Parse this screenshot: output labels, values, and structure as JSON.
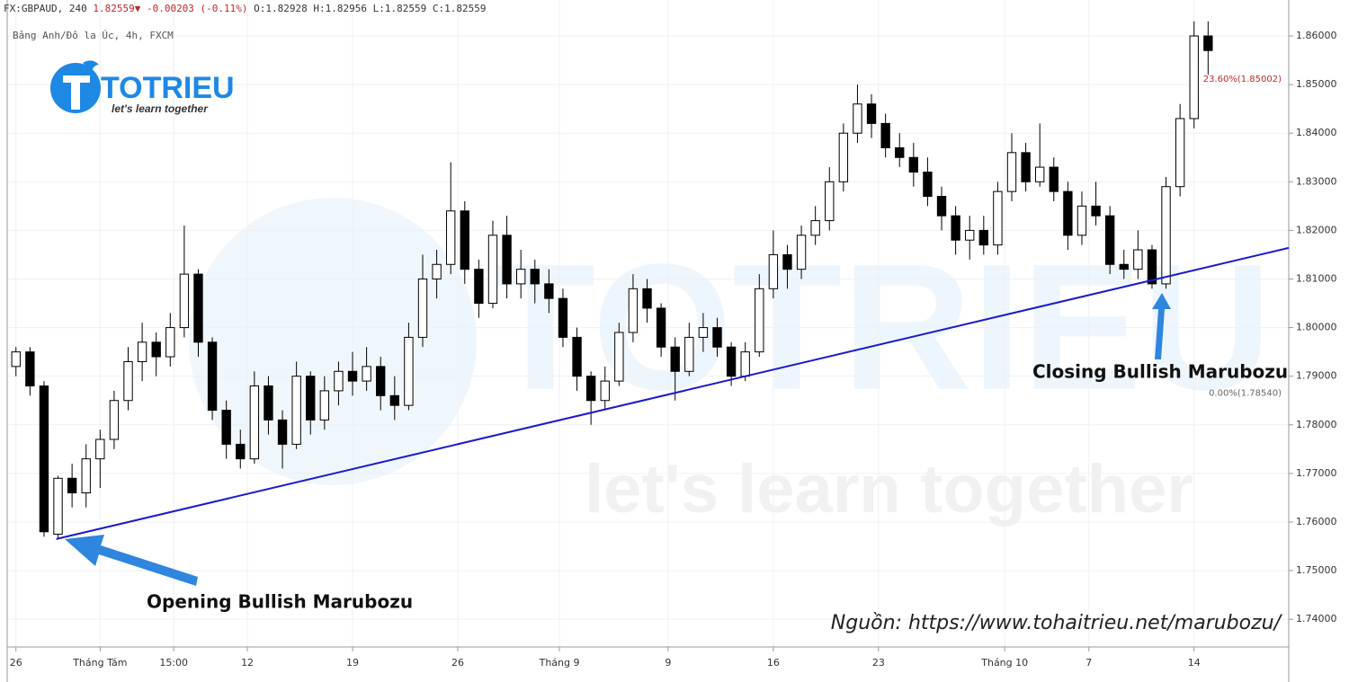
{
  "chart_data": {
    "type": "candlestick",
    "header": {
      "symbol": "FX:GBPAUD, 240",
      "price": "1.82559",
      "change": "-0.00203 (-0.11%)",
      "open": "O:1.82928",
      "high": "H:1.82956",
      "low": "L:1.82559",
      "close": "C:1.82559"
    },
    "subtitle": "Bảng Anh/Đô la Úc, 4h, FXCM",
    "logo": {
      "name": "TOTRIEU",
      "tagline": "let's learn together"
    },
    "x": [
      0,
      4,
      8,
      12,
      16,
      20,
      24,
      28,
      32,
      36,
      40,
      44,
      48,
      52,
      56,
      60,
      64,
      68,
      72,
      76,
      80,
      84,
      88,
      92,
      96,
      100,
      104,
      108,
      112,
      116,
      120,
      124,
      128,
      132,
      136,
      140,
      144,
      148,
      152,
      156,
      160,
      164,
      168,
      172,
      176,
      180,
      184,
      188,
      192,
      196,
      200,
      204,
      208,
      212,
      216,
      220,
      224,
      228,
      232,
      236,
      240,
      244,
      248,
      252,
      256,
      260,
      264,
      268,
      272,
      276,
      280,
      284,
      288,
      292,
      296,
      300,
      304,
      308,
      312,
      316,
      320,
      324,
      328,
      332,
      336,
      340
    ],
    "open": [
      1.792,
      1.795,
      1.788,
      1.7575,
      1.769,
      1.766,
      1.773,
      1.777,
      1.785,
      1.793,
      1.797,
      1.794,
      1.8,
      1.811,
      1.797,
      1.783,
      1.776,
      1.773,
      1.788,
      1.781,
      1.776,
      1.79,
      1.781,
      1.787,
      1.791,
      1.789,
      1.792,
      1.786,
      1.784,
      1.798,
      1.81,
      1.813,
      1.824,
      1.812,
      1.805,
      1.819,
      1.809,
      1.812,
      1.809,
      1.806,
      1.798,
      1.79,
      1.785,
      1.789,
      1.799,
      1.808,
      1.804,
      1.796,
      1.791,
      1.798,
      1.8,
      1.796,
      1.79,
      1.795,
      1.808,
      1.815,
      1.812,
      1.819,
      1.822,
      1.83,
      1.84,
      1.846,
      1.842,
      1.837,
      1.835,
      1.832,
      1.827,
      1.823,
      1.818,
      1.82,
      1.817,
      1.828,
      1.836,
      1.83,
      1.833,
      1.828,
      1.819,
      1.825,
      1.823,
      1.813,
      1.812,
      1.816,
      1.809,
      1.829,
      1.843,
      1.86
    ],
    "high": [
      1.796,
      1.796,
      1.789,
      1.7695,
      1.772,
      1.776,
      1.779,
      1.787,
      1.796,
      1.801,
      1.799,
      1.803,
      1.821,
      1.812,
      1.798,
      1.785,
      1.779,
      1.791,
      1.79,
      1.783,
      1.793,
      1.791,
      1.79,
      1.793,
      1.795,
      1.796,
      1.794,
      1.79,
      1.801,
      1.815,
      1.816,
      1.834,
      1.826,
      1.814,
      1.822,
      1.823,
      1.816,
      1.814,
      1.812,
      1.808,
      1.8,
      1.791,
      1.792,
      1.801,
      1.811,
      1.81,
      1.805,
      1.798,
      1.801,
      1.803,
      1.802,
      1.797,
      1.797,
      1.811,
      1.82,
      1.817,
      1.821,
      1.825,
      1.833,
      1.842,
      1.85,
      1.848,
      1.844,
      1.84,
      1.838,
      1.835,
      1.829,
      1.825,
      1.823,
      1.823,
      1.83,
      1.84,
      1.838,
      1.842,
      1.835,
      1.83,
      1.828,
      1.83,
      1.825,
      1.816,
      1.82,
      1.817,
      1.831,
      1.846,
      1.863,
      1.863
    ],
    "low": [
      1.79,
      1.786,
      1.757,
      1.7565,
      1.763,
      1.763,
      1.767,
      1.775,
      1.783,
      1.789,
      1.79,
      1.792,
      1.798,
      1.794,
      1.781,
      1.773,
      1.771,
      1.772,
      1.778,
      1.771,
      1.775,
      1.778,
      1.779,
      1.784,
      1.786,
      1.787,
      1.783,
      1.781,
      1.783,
      1.796,
      1.806,
      1.811,
      1.809,
      1.802,
      1.804,
      1.806,
      1.806,
      1.805,
      1.803,
      1.796,
      1.787,
      1.78,
      1.783,
      1.788,
      1.797,
      1.801,
      1.794,
      1.785,
      1.79,
      1.795,
      1.794,
      1.788,
      1.789,
      1.794,
      1.806,
      1.808,
      1.81,
      1.817,
      1.82,
      1.828,
      1.838,
      1.839,
      1.835,
      1.833,
      1.829,
      1.825,
      1.82,
      1.815,
      1.814,
      1.815,
      1.815,
      1.826,
      1.828,
      1.829,
      1.826,
      1.816,
      1.817,
      1.821,
      1.811,
      1.81,
      1.81,
      1.808,
      1.808,
      1.827,
      1.841,
      1.852
    ],
    "close": [
      1.795,
      1.788,
      1.758,
      1.769,
      1.766,
      1.773,
      1.777,
      1.785,
      1.793,
      1.797,
      1.794,
      1.8,
      1.811,
      1.797,
      1.783,
      1.776,
      1.773,
      1.788,
      1.781,
      1.776,
      1.79,
      1.781,
      1.787,
      1.791,
      1.789,
      1.792,
      1.786,
      1.784,
      1.798,
      1.81,
      1.813,
      1.824,
      1.812,
      1.805,
      1.819,
      1.809,
      1.812,
      1.809,
      1.806,
      1.798,
      1.79,
      1.785,
      1.789,
      1.799,
      1.808,
      1.804,
      1.796,
      1.791,
      1.798,
      1.8,
      1.796,
      1.79,
      1.795,
      1.808,
      1.815,
      1.812,
      1.819,
      1.822,
      1.83,
      1.84,
      1.846,
      1.842,
      1.837,
      1.835,
      1.832,
      1.827,
      1.823,
      1.818,
      1.82,
      1.817,
      1.828,
      1.836,
      1.83,
      1.833,
      1.828,
      1.819,
      1.825,
      1.823,
      1.813,
      1.812,
      1.816,
      1.809,
      1.829,
      1.843,
      1.86,
      1.857
    ],
    "xlim": [
      -2.5,
      363
    ],
    "ylim": [
      1.7343,
      1.8637
    ],
    "xticks": [
      {
        "value": 0,
        "label": "26"
      },
      {
        "value": 24,
        "label": "Tháng Tám"
      },
      {
        "value": 45,
        "label": "15:00"
      },
      {
        "value": 66,
        "label": "12"
      },
      {
        "value": 96,
        "label": "19"
      },
      {
        "value": 126,
        "label": "26"
      },
      {
        "value": 155,
        "label": "Tháng 9"
      },
      {
        "value": 186,
        "label": "9"
      },
      {
        "value": 216,
        "label": "16"
      },
      {
        "value": 246,
        "label": "23"
      },
      {
        "value": 282,
        "label": "Tháng 10"
      },
      {
        "value": 306,
        "label": "7"
      },
      {
        "value": 336,
        "label": "14"
      }
    ],
    "yticks": [
      {
        "value": 1.74,
        "label": "1.74000"
      },
      {
        "value": 1.75,
        "label": "1.75000"
      },
      {
        "value": 1.76,
        "label": "1.76000"
      },
      {
        "value": 1.77,
        "label": "1.77000"
      },
      {
        "value": 1.78,
        "label": "1.78000"
      },
      {
        "value": 1.79,
        "label": "1.79000"
      },
      {
        "value": 1.8,
        "label": "1.80000"
      },
      {
        "value": 1.81,
        "label": "1.81000"
      },
      {
        "value": 1.82,
        "label": "1.82000"
      },
      {
        "value": 1.83,
        "label": "1.83000"
      },
      {
        "value": 1.84,
        "label": "1.84000"
      },
      {
        "value": 1.85,
        "label": "1.85000"
      },
      {
        "value": 1.86,
        "label": "1.86000"
      }
    ],
    "grid": true,
    "up_color": "#ffffff",
    "down_color": "#000000",
    "trendline": {
      "x": [
        11.5,
        363
      ],
      "y": [
        1.7565,
        1.8164
      ],
      "color": "#1a1acc"
    },
    "fib_levels": [
      {
        "value": 1.85002,
        "label": "23.60%(1.85002)",
        "color": "#c0282d"
      },
      {
        "value": 1.7854,
        "label": "0.00%(1.78540)",
        "color": "#666666"
      }
    ],
    "annotations": [
      "Opening Bullish Marubozu",
      "Closing Bullish Marubozu"
    ],
    "source": "Nguồn: https://www.tohaitrieu.net/marubozu/"
  }
}
